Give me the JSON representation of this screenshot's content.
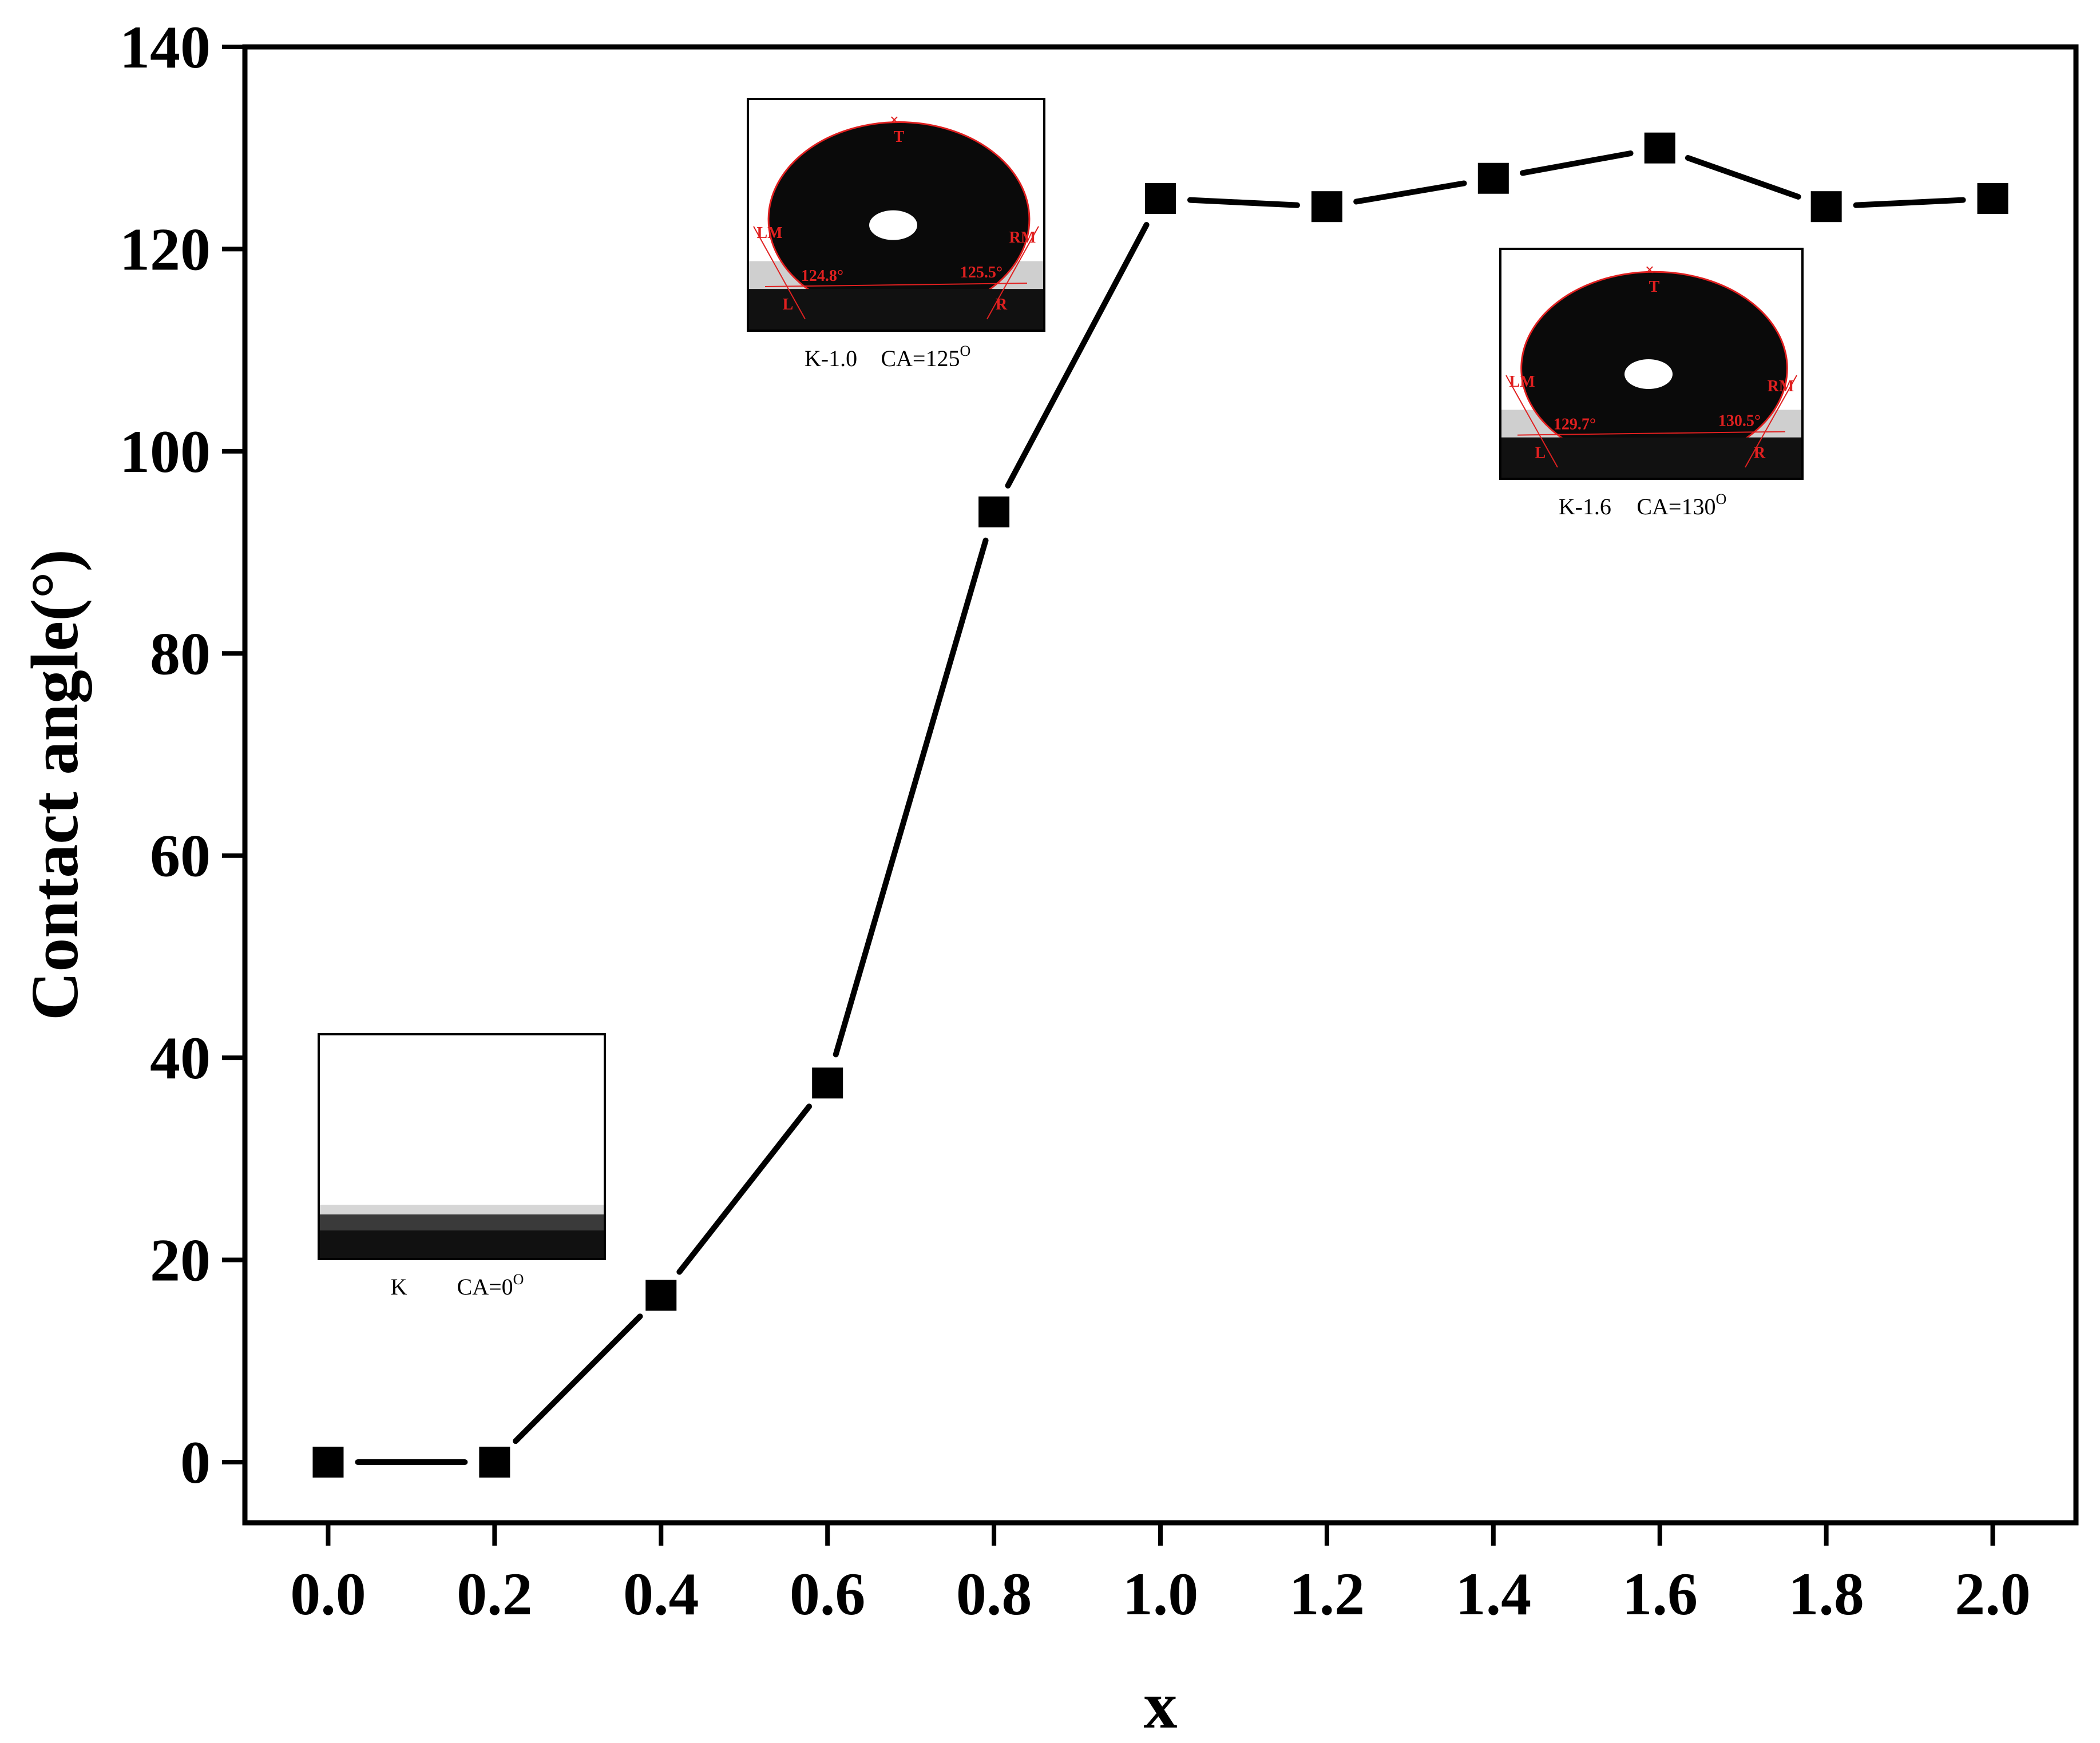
{
  "chart_data": {
    "type": "line",
    "xlabel": "x",
    "ylabel": "Contact angle(°)",
    "xlim": [
      -0.1,
      2.1
    ],
    "ylim": [
      -6,
      140
    ],
    "xticks": [
      "0.0",
      "0.2",
      "0.4",
      "0.6",
      "0.8",
      "1.0",
      "1.2",
      "1.4",
      "1.6",
      "1.8",
      "2.0"
    ],
    "yticks": [
      "0",
      "20",
      "40",
      "60",
      "80",
      "100",
      "120",
      "140"
    ],
    "series": [
      {
        "marker": "square",
        "color": "#000000",
        "x": [
          0.0,
          0.2,
          0.4,
          0.6,
          0.8,
          1.0,
          1.2,
          1.4,
          1.6,
          1.8,
          2.0
        ],
        "y": [
          0,
          0,
          16.5,
          37.5,
          94,
          125,
          124.2,
          127,
          130,
          124.2,
          125
        ]
      }
    ],
    "insets": [
      {
        "caption_left": "K",
        "caption_right": "CA=0",
        "caption_sup": "O",
        "droplet": false,
        "annotations": []
      },
      {
        "caption_left": "K-1.0",
        "caption_right": "CA=125",
        "caption_sup": "O",
        "droplet": true,
        "annotations": [
          "T",
          "LM",
          "RM",
          "124.8°",
          "125.5°",
          "L",
          "R"
        ]
      },
      {
        "caption_left": "K-1.6",
        "caption_right": "CA=130",
        "caption_sup": "O",
        "droplet": true,
        "annotations": [
          "T",
          "LM",
          "RM",
          "129.7°",
          "130.5°",
          "L",
          "R"
        ]
      }
    ],
    "colors": {
      "line": "#000000",
      "annotation": "#e02020"
    }
  }
}
